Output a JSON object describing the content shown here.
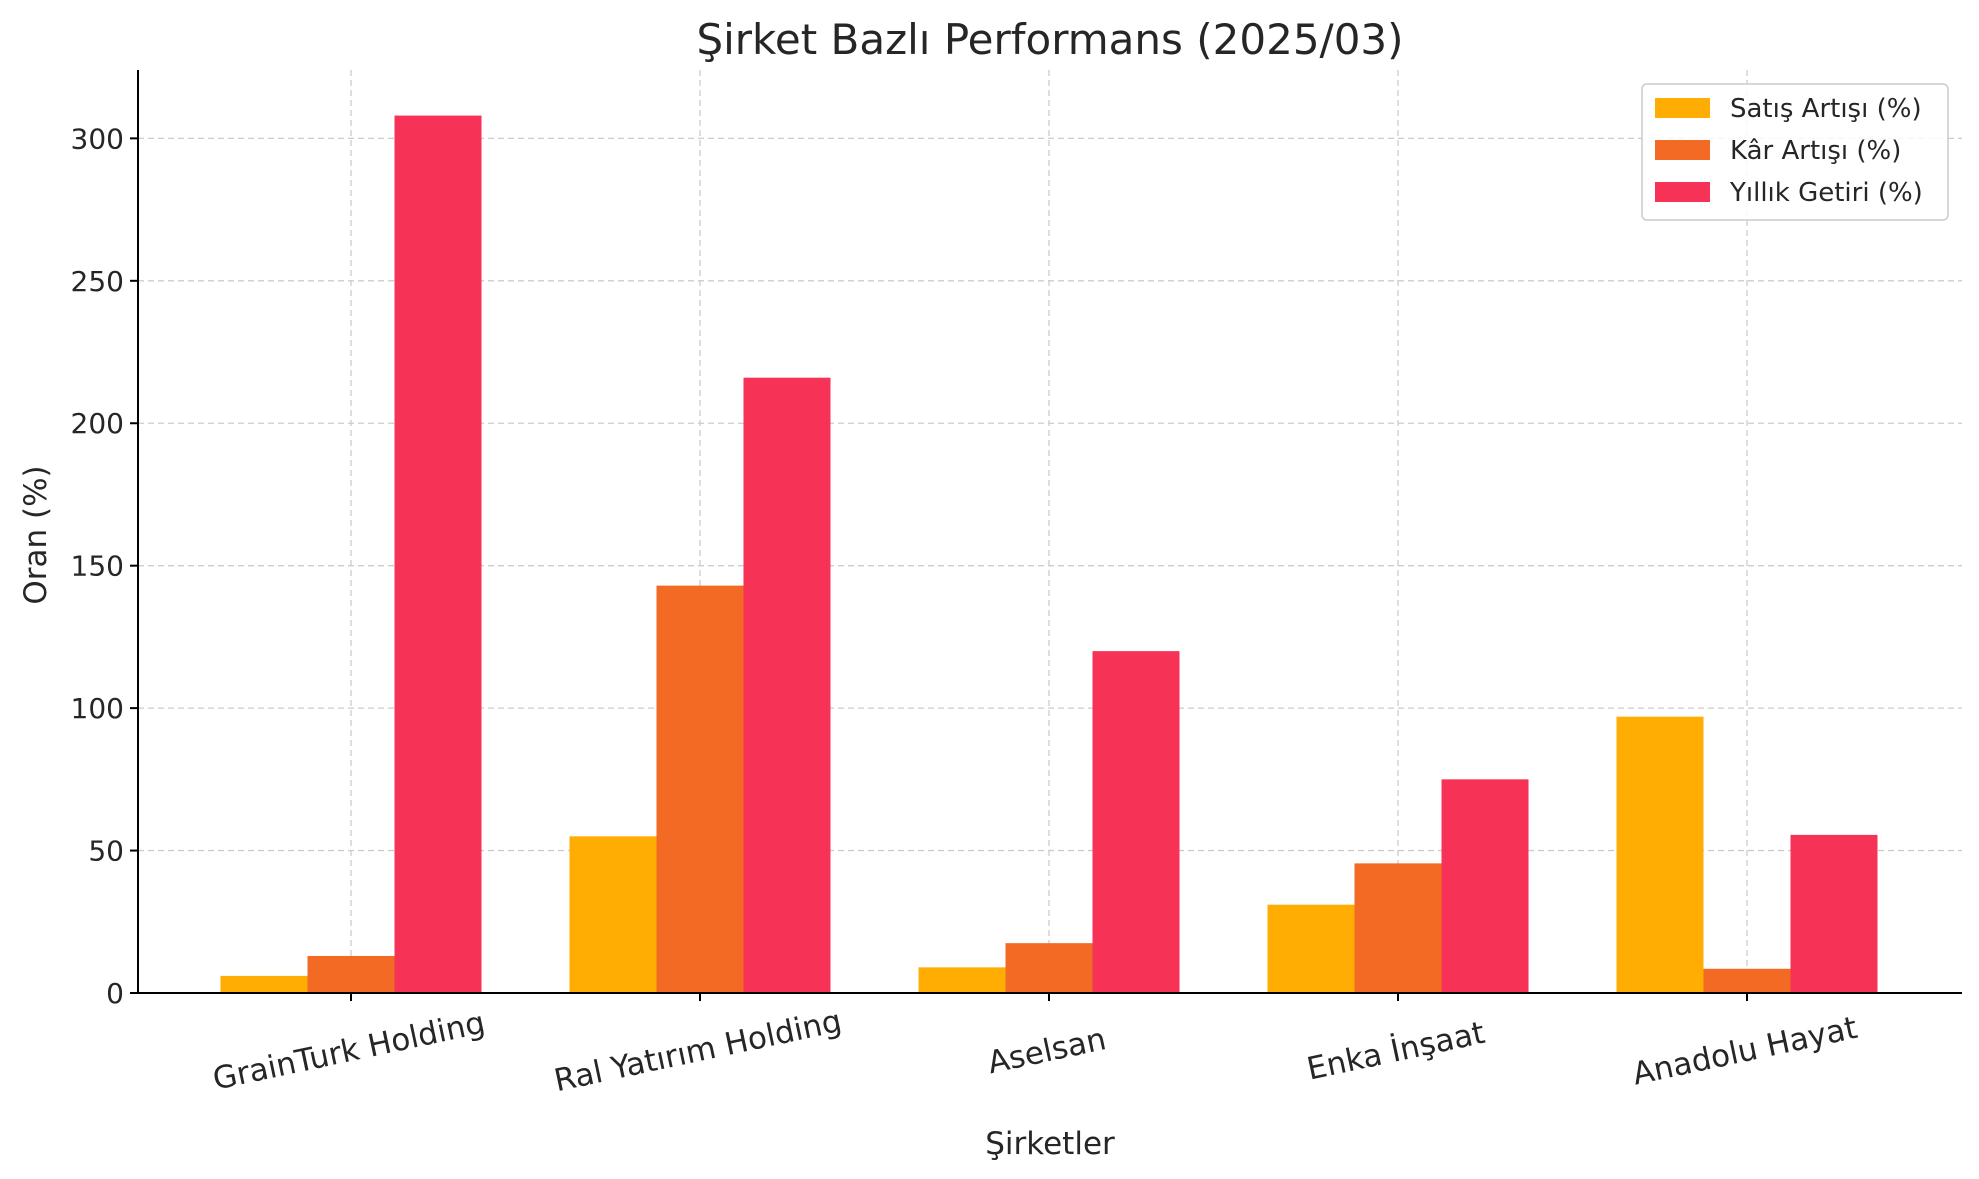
{
  "chart_data": {
    "type": "bar",
    "title": "Şirket Bazlı Performans (2025/03)",
    "xlabel": "Şirketler",
    "ylabel": "Oran (%)",
    "categories": [
      "GrainTurk Holding",
      "Ral Yatırım Holding",
      "Aselsan",
      "Enka İnşaat",
      "Anadolu Hayat"
    ],
    "series": [
      {
        "name": "Satış Artışı (%)",
        "color": "#FFAD02",
        "values": [
          6,
          55,
          9,
          31,
          97
        ]
      },
      {
        "name": "Kâr Artışı (%)",
        "color": "#F26A23",
        "values": [
          13,
          143,
          17.5,
          45.5,
          8.5
        ]
      },
      {
        "name": "Yıllık Getiri (%)",
        "color": "#F63256",
        "values": [
          308,
          216,
          120,
          75,
          55.5
        ]
      }
    ],
    "ylim": [
      0,
      324
    ],
    "yticks": [
      0,
      50,
      100,
      150,
      200,
      250,
      300
    ],
    "grid": true,
    "legend_position": "top-right"
  }
}
